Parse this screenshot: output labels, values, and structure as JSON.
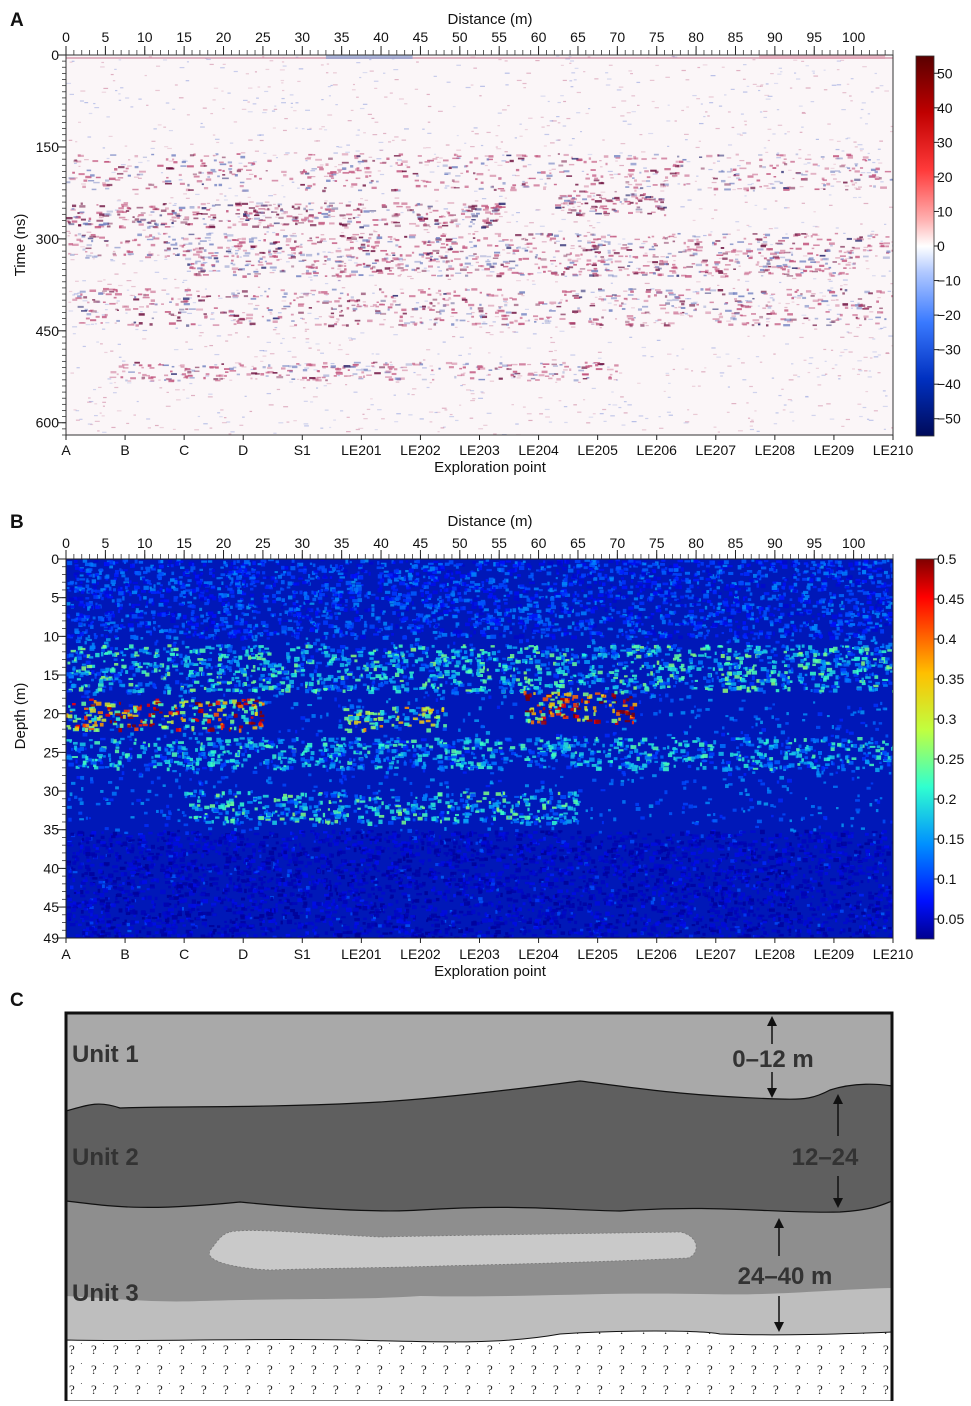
{
  "panels": {
    "a": {
      "letter": "A",
      "x_title": "Distance (m)",
      "y_title": "Time (ns)",
      "bottom_title": "Exploration point",
      "x_ticks": [
        "0",
        "5",
        "10",
        "15",
        "20",
        "25",
        "30",
        "35",
        "40",
        "45",
        "50",
        "55",
        "60",
        "65",
        "70",
        "75",
        "80",
        "85",
        "90",
        "95",
        "100"
      ],
      "y_ticks": [
        "0",
        "150",
        "300",
        "450",
        "600"
      ],
      "colorbar_ticks": [
        "50",
        "40",
        "30",
        "20",
        "10",
        "0",
        "−10",
        "−20",
        "−30",
        "−40",
        "−50"
      ]
    },
    "b": {
      "letter": "B",
      "x_title": "Distance (m)",
      "y_title": "Depth (m)",
      "bottom_title": "Exploration point",
      "x_ticks": [
        "0",
        "5",
        "10",
        "15",
        "20",
        "25",
        "30",
        "35",
        "40",
        "45",
        "50",
        "55",
        "60",
        "65",
        "70",
        "75",
        "80",
        "85",
        "90",
        "95",
        "100"
      ],
      "y_ticks": [
        "0",
        "5",
        "10",
        "15",
        "20",
        "25",
        "30",
        "35",
        "40",
        "45",
        "49"
      ],
      "colorbar_ticks": [
        "0.5",
        "0.45",
        "0.4",
        "0.35",
        "0.3",
        "0.25",
        "0.2",
        "0.15",
        "0.1",
        "0.05"
      ]
    },
    "c": {
      "letter": "C",
      "units": [
        "Unit 1",
        "Unit 2",
        "Unit 3"
      ],
      "ranges": [
        "0–12 m",
        "12–24",
        "24–40 m"
      ]
    }
  },
  "exploration_points": [
    "A",
    "B",
    "C",
    "D",
    "S1",
    "LE201",
    "LE202",
    "LE203",
    "LE204",
    "LE205",
    "LE206",
    "LE207",
    "LE208",
    "LE209",
    "LE210"
  ],
  "colors": {
    "diverging_neg": "#0a1a8a",
    "diverging_pos": "#8a0a0a",
    "jet_low": "#00128f",
    "jet_high": "#8f0000",
    "unit1": "#a9a9a9",
    "unit2": "#5f5f5f",
    "unit3": "#8e8e8e",
    "lens": "#c8c8c8"
  },
  "chart_data": [
    {
      "type": "heatmap",
      "panel": "A",
      "title": "",
      "xlabel": "Distance (m)",
      "ylabel": "Time (ns)",
      "xlim": [
        0,
        105
      ],
      "ylim": [
        0,
        620
      ],
      "colorbar_range": [
        -50,
        50
      ],
      "bands_ns": [
        {
          "from": 160,
          "to": 220,
          "x_from": 0,
          "x_to": 105,
          "strength": 0.35
        },
        {
          "from": 240,
          "to": 280,
          "x_from": 0,
          "x_to": 55,
          "strength": 0.75
        },
        {
          "from": 220,
          "to": 260,
          "x_from": 62,
          "x_to": 76,
          "strength": 0.85
        },
        {
          "from": 290,
          "to": 330,
          "x_from": 0,
          "x_to": 105,
          "strength": 0.45
        },
        {
          "from": 330,
          "to": 360,
          "x_from": 15,
          "x_to": 100,
          "strength": 0.35
        },
        {
          "from": 380,
          "to": 440,
          "x_from": 0,
          "x_to": 105,
          "strength": 0.55
        },
        {
          "from": 500,
          "to": 530,
          "x_from": 5,
          "x_to": 70,
          "strength": 0.2
        }
      ]
    },
    {
      "type": "heatmap",
      "panel": "B",
      "title": "",
      "xlabel": "Distance (m)",
      "ylabel": "Depth (m)",
      "xlim": [
        0,
        105
      ],
      "ylim": [
        0,
        49
      ],
      "colorbar_range": [
        0.025,
        0.5
      ],
      "bands_m": [
        {
          "from": 0,
          "to": 10,
          "x_from": 0,
          "x_to": 105,
          "level": 0.12
        },
        {
          "from": 11,
          "to": 17,
          "x_from": 0,
          "x_to": 105,
          "level": 0.22
        },
        {
          "from": 18,
          "to": 22,
          "x_from": 0,
          "x_to": 25,
          "level": 0.42
        },
        {
          "from": 17,
          "to": 21,
          "x_from": 58,
          "x_to": 72,
          "level": 0.45
        },
        {
          "from": 19,
          "to": 22,
          "x_from": 35,
          "x_to": 48,
          "level": 0.32
        },
        {
          "from": 23,
          "to": 27,
          "x_from": 0,
          "x_to": 105,
          "level": 0.2
        },
        {
          "from": 30,
          "to": 34,
          "x_from": 15,
          "x_to": 65,
          "level": 0.22
        },
        {
          "from": 35,
          "to": 49,
          "x_from": 0,
          "x_to": 105,
          "level": 0.06
        }
      ]
    }
  ]
}
